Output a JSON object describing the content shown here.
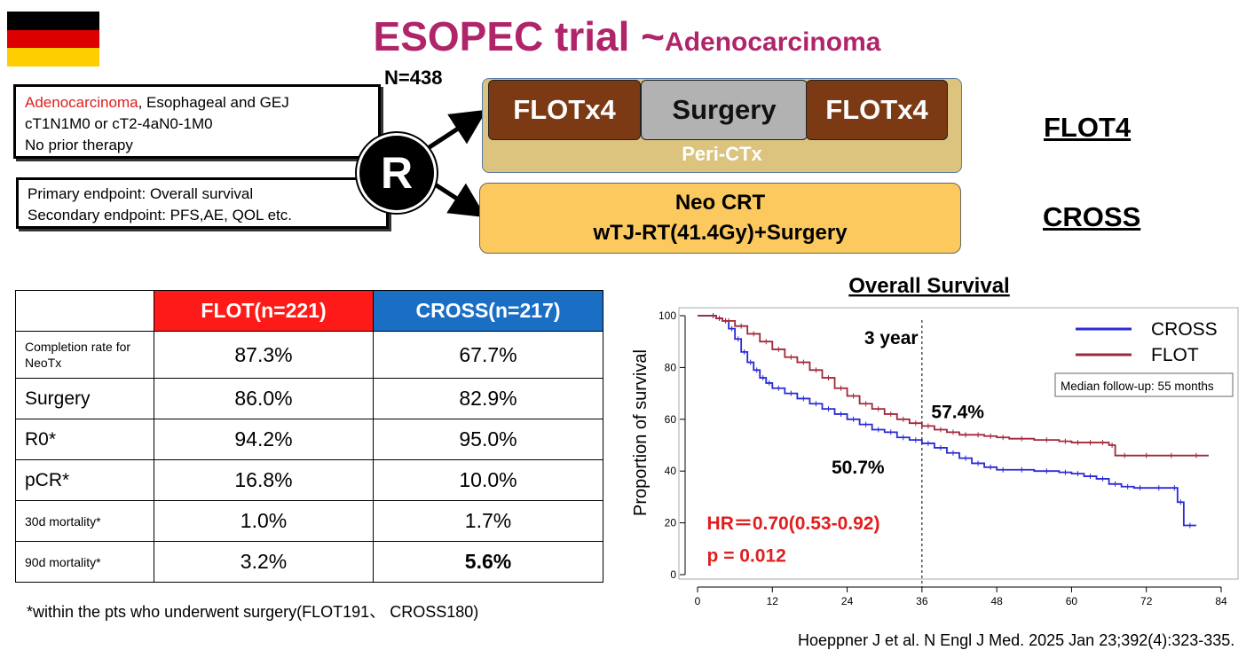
{
  "title": {
    "main": "ESOPEC trial ~",
    "sub": "Adenocarcinoma"
  },
  "flag_colors": [
    "#000000",
    "#dd0000",
    "#ffce00"
  ],
  "n_label": "N=438",
  "eligibility": {
    "line1_red": "Adenocarcinoma",
    "line1_rest": ", Esophageal and GEJ",
    "line2": "cT1N1M0 or cT2-4aN0-1M0",
    "line3": "No prior therapy"
  },
  "endpoints": {
    "primary": "Primary endpoint:  Overall survival",
    "secondary": "Secondary endpoint:  PFS,AE, QOL etc."
  },
  "randomization": "R",
  "flot_arm": {
    "seg1": "FLOTx4",
    "seg2": "Surgery",
    "seg3": "FLOTx4",
    "caption": "Peri-CTx",
    "label": "FLOT4"
  },
  "cross_arm": {
    "line1": "Neo CRT",
    "line2": "wTJ-RT(41.4Gy)+Surgery",
    "label": "CROSS"
  },
  "table": {
    "headers": [
      "",
      "FLOT(n=221)",
      "CROSS(n=217)"
    ],
    "header_colors": [
      "#ffffff",
      "#ff1a1a",
      "#1a6fc4"
    ],
    "rows": [
      {
        "label": "Completion rate for NeoTx",
        "flot": "87.3%",
        "cross": "67.7%"
      },
      {
        "label": "Surgery",
        "flot": "86.0%",
        "cross": "82.9%"
      },
      {
        "label": "R0*",
        "flot": "94.2%",
        "cross": "95.0%"
      },
      {
        "label": "pCR*",
        "flot": "16.8%",
        "cross": "10.0%"
      },
      {
        "label": "30d mortality*",
        "flot": "1.0%",
        "cross": "1.7%"
      },
      {
        "label": "90d mortality*",
        "flot": "3.2%",
        "cross": "5.6%"
      }
    ]
  },
  "footnote": "*within the pts who underwent surgery(FLOT191、 CROSS180)",
  "citation": "Hoeppner J et al. N Engl J Med. 2025 Jan 23;392(4):323-335.",
  "chart_data": {
    "type": "line",
    "title": "Overall Survival",
    "xlabel": "",
    "ylabel": "Proportion of survival",
    "xlim": [
      0,
      84
    ],
    "ylim": [
      0,
      100
    ],
    "xticks": [
      0,
      12,
      24,
      36,
      48,
      60,
      72,
      84
    ],
    "yticks": [
      0,
      20,
      40,
      60,
      80,
      100
    ],
    "grid": false,
    "legend_position": "top-right",
    "series": [
      {
        "name": "CROSS",
        "color": "#2a2ad6",
        "x": [
          0,
          2,
          3,
          4,
          5,
          6,
          7,
          8,
          9,
          10,
          11,
          12,
          14,
          16,
          18,
          20,
          22,
          24,
          26,
          28,
          30,
          32,
          34,
          36,
          38,
          40,
          42,
          44,
          46,
          48,
          50,
          54,
          58,
          60,
          62,
          64,
          66,
          68,
          70,
          72,
          76,
          77,
          78,
          80
        ],
        "y": [
          100,
          100,
          99,
          98,
          95,
          91,
          86,
          82,
          79,
          76,
          74,
          72,
          70,
          68,
          66,
          64,
          62,
          60,
          58,
          56,
          55,
          53,
          52,
          50.7,
          49,
          47,
          45,
          43,
          41.5,
          40.5,
          40.5,
          40,
          39.5,
          39,
          38,
          37,
          35,
          34,
          33.5,
          33.5,
          33.5,
          28,
          19,
          19
        ]
      },
      {
        "name": "FLOT",
        "color": "#a0283a",
        "x": [
          0,
          2,
          3,
          4,
          6,
          8,
          10,
          12,
          14,
          16,
          18,
          20,
          22,
          24,
          26,
          28,
          30,
          32,
          34,
          36,
          38,
          40,
          42,
          44,
          46,
          48,
          50,
          54,
          58,
          60,
          62,
          64,
          66,
          67,
          70,
          74,
          78,
          82
        ],
        "y": [
          100,
          100,
          99,
          98,
          96,
          93,
          90,
          87,
          84,
          82,
          79,
          76,
          72,
          69,
          66,
          64,
          62,
          60,
          58.5,
          57.4,
          56,
          55,
          54,
          54,
          53.5,
          53,
          52.5,
          52,
          51.5,
          51,
          51,
          51,
          50,
          46,
          46,
          46,
          46,
          46
        ]
      }
    ],
    "annotations": {
      "year3_label": "3 year",
      "flot_value": "57.4%",
      "cross_value": "50.7%",
      "followup": "Median follow-up: 55 months",
      "hr": "HR＝0.70(0.53-0.92)",
      "p": "p = 0.012"
    }
  }
}
